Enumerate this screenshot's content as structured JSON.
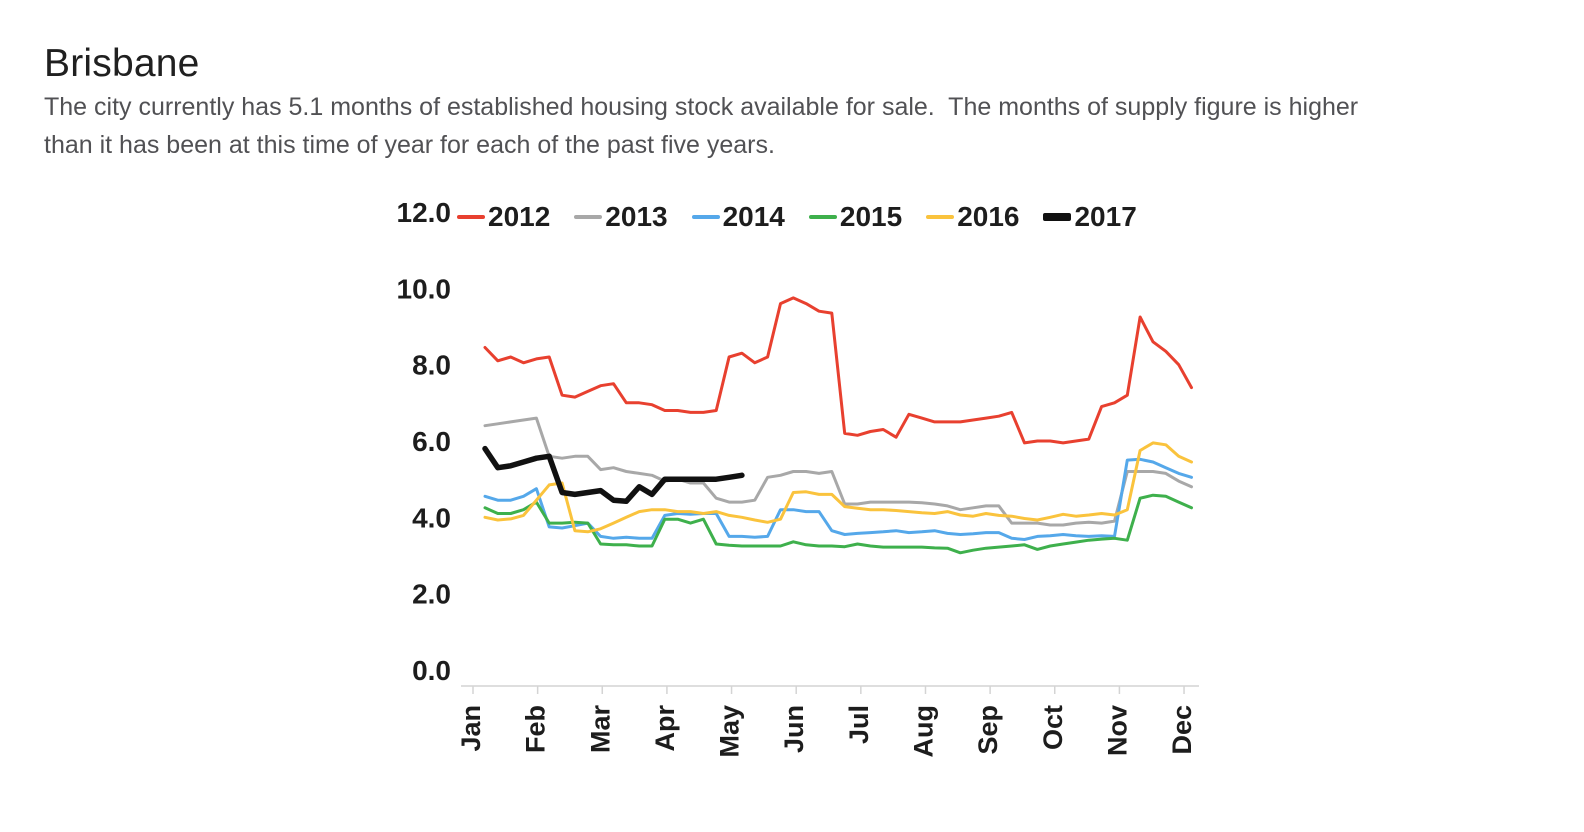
{
  "page": {
    "title": "Brisbane",
    "paragraph_lines": [
      "The city currently has 5.1 months of established housing stock available for sale.  The months of supply figure is higher",
      "than it has been at this time of year for each of the past five years."
    ]
  },
  "colors": {
    "title_text": "#202020",
    "body_text": "#515154",
    "axis_label_text": "#1d1d1d",
    "axis_line": "#d4d4d4",
    "background": "#ffffff"
  },
  "chart_data": {
    "type": "line",
    "title": "",
    "xlabel": "",
    "ylabel": "",
    "ylim": [
      0,
      12
    ],
    "y_axis": {
      "tick_step": 2,
      "ticks": [
        {
          "label": "0.0",
          "value": 0
        },
        {
          "label": "2.0",
          "value": 2
        },
        {
          "label": "4.0",
          "value": 4
        },
        {
          "label": "6.0",
          "value": 6
        },
        {
          "label": "8.0",
          "value": 8
        },
        {
          "label": "10.0",
          "value": 10
        },
        {
          "label": "12.0",
          "value": 12
        }
      ]
    },
    "x_axis": {
      "categories": [
        "Jan",
        "Feb",
        "Mar",
        "Apr",
        "May",
        "Jun",
        "Jul",
        "Aug",
        "Sep",
        "Oct",
        "Nov",
        "Dec"
      ],
      "points_per_month": 4.66
    },
    "grid": false,
    "legend_position": "top",
    "series": [
      {
        "name": "2012",
        "color": "#e8402f",
        "bold": false,
        "values": [
          8.45,
          8.1,
          8.2,
          8.05,
          8.15,
          8.2,
          7.2,
          7.15,
          7.3,
          7.45,
          7.5,
          7.0,
          7.0,
          6.95,
          6.8,
          6.8,
          6.75,
          6.75,
          6.8,
          8.2,
          8.3,
          8.05,
          8.2,
          9.6,
          9.75,
          9.6,
          9.4,
          9.35,
          6.2,
          6.15,
          6.25,
          6.3,
          6.1,
          6.7,
          6.6,
          6.5,
          6.5,
          6.5,
          6.55,
          6.6,
          6.65,
          6.75,
          5.95,
          6.0,
          6.0,
          5.95,
          6.0,
          6.05,
          6.9,
          7.0,
          7.2,
          9.25,
          8.6,
          8.35,
          8.0,
          7.4
        ]
      },
      {
        "name": "2013",
        "color": "#a8a8a8",
        "bold": false,
        "values": [
          6.4,
          6.45,
          6.5,
          6.55,
          6.6,
          5.6,
          5.55,
          5.6,
          5.6,
          5.25,
          5.3,
          5.2,
          5.15,
          5.1,
          4.95,
          5.0,
          4.9,
          4.9,
          4.5,
          4.4,
          4.4,
          4.45,
          5.05,
          5.1,
          5.2,
          5.2,
          5.15,
          5.2,
          4.35,
          4.35,
          4.4,
          4.4,
          4.4,
          4.4,
          4.38,
          4.35,
          4.3,
          4.2,
          4.25,
          4.3,
          4.3,
          3.85,
          3.85,
          3.85,
          3.8,
          3.8,
          3.85,
          3.87,
          3.85,
          3.9,
          5.2,
          5.2,
          5.2,
          5.15,
          4.95,
          4.8
        ]
      },
      {
        "name": "2014",
        "color": "#55a8ea",
        "bold": false,
        "values": [
          4.55,
          4.45,
          4.45,
          4.55,
          4.75,
          3.75,
          3.72,
          3.78,
          3.85,
          3.5,
          3.45,
          3.48,
          3.45,
          3.45,
          4.05,
          4.1,
          4.08,
          4.1,
          4.1,
          3.5,
          3.5,
          3.48,
          3.5,
          4.2,
          4.2,
          4.15,
          4.15,
          3.65,
          3.55,
          3.58,
          3.6,
          3.62,
          3.65,
          3.6,
          3.62,
          3.65,
          3.58,
          3.55,
          3.57,
          3.6,
          3.6,
          3.45,
          3.42,
          3.5,
          3.52,
          3.55,
          3.52,
          3.5,
          3.52,
          3.5,
          5.5,
          5.52,
          5.45,
          5.3,
          5.15,
          5.05
        ]
      },
      {
        "name": "2015",
        "color": "#3eb04c",
        "bold": false,
        "values": [
          4.25,
          4.1,
          4.1,
          4.2,
          4.4,
          3.85,
          3.85,
          3.87,
          3.85,
          3.3,
          3.28,
          3.28,
          3.25,
          3.25,
          3.95,
          3.95,
          3.85,
          3.95,
          3.3,
          3.27,
          3.25,
          3.25,
          3.25,
          3.25,
          3.36,
          3.28,
          3.25,
          3.25,
          3.23,
          3.3,
          3.25,
          3.22,
          3.22,
          3.22,
          3.22,
          3.2,
          3.19,
          3.07,
          3.14,
          3.19,
          3.22,
          3.25,
          3.28,
          3.16,
          3.25,
          3.3,
          3.35,
          3.4,
          3.43,
          3.45,
          3.4,
          4.5,
          4.58,
          4.55,
          4.4,
          4.25
        ]
      },
      {
        "name": "2016",
        "color": "#fac33d",
        "bold": false,
        "values": [
          4.0,
          3.93,
          3.96,
          4.05,
          4.45,
          4.85,
          4.9,
          3.65,
          3.62,
          3.7,
          3.85,
          4.0,
          4.15,
          4.2,
          4.2,
          4.15,
          4.15,
          4.1,
          4.15,
          4.05,
          4.0,
          3.93,
          3.87,
          3.95,
          4.65,
          4.67,
          4.6,
          4.6,
          4.28,
          4.24,
          4.2,
          4.2,
          4.18,
          4.15,
          4.12,
          4.1,
          4.15,
          4.06,
          4.03,
          4.1,
          4.05,
          4.03,
          3.97,
          3.93,
          4.0,
          4.08,
          4.03,
          4.06,
          4.1,
          4.06,
          4.2,
          5.75,
          5.95,
          5.9,
          5.6,
          5.45
        ]
      },
      {
        "name": "2017",
        "color": "#111111",
        "bold": true,
        "values": [
          5.8,
          5.3,
          5.35,
          5.45,
          5.55,
          5.6,
          4.65,
          4.6,
          4.65,
          4.7,
          4.45,
          4.42,
          4.8,
          4.6,
          5.0,
          5.0,
          5.0,
          5.0,
          5.0,
          5.05,
          5.1
        ]
      }
    ]
  }
}
